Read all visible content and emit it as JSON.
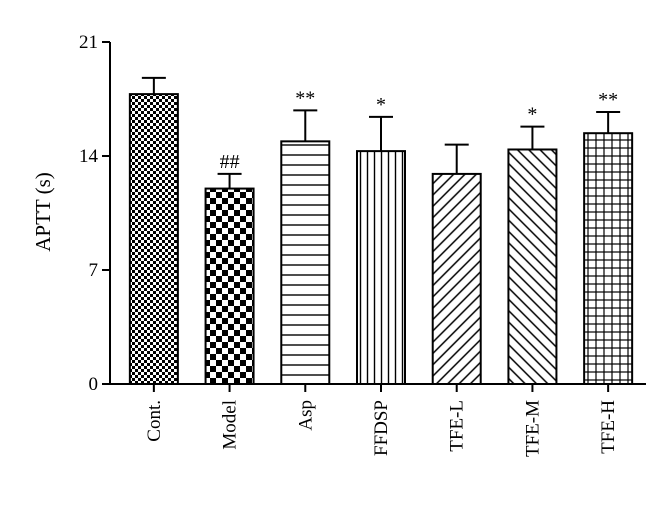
{
  "chart_data": {
    "type": "bar",
    "title": "",
    "xlabel": "",
    "ylabel": "APTT (s)",
    "ylim": [
      0,
      21
    ],
    "yticks": [
      0,
      7,
      14,
      21
    ],
    "grid": false,
    "categories": [
      "Cont.",
      "Model",
      "Asp",
      "FFDSP",
      "TFE-L",
      "TFE-M",
      "TFE-H"
    ],
    "values": [
      17.8,
      12.0,
      14.9,
      14.3,
      12.9,
      14.4,
      15.4
    ],
    "errors": [
      1.0,
      0.9,
      1.9,
      2.1,
      1.8,
      1.4,
      1.3
    ],
    "annotations": [
      "",
      "##",
      "**",
      "*",
      "",
      "*",
      "**"
    ],
    "patterns": [
      "fine-checker",
      "coarse-checker",
      "horizontal-lines",
      "vertical-lines",
      "diagonal-up",
      "diagonal-down",
      "grid"
    ],
    "bar_color": "#000000"
  }
}
